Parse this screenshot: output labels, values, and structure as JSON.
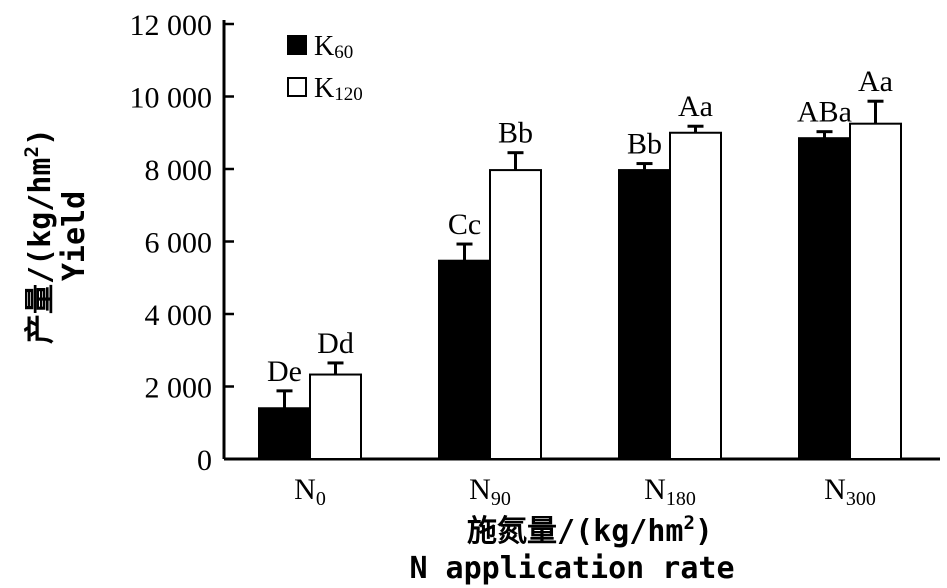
{
  "chart_data": {
    "type": "bar",
    "categories": [
      "N0",
      "N90",
      "N180",
      "N300"
    ],
    "category_labels": [
      {
        "base": "N",
        "sub": "0"
      },
      {
        "base": "N",
        "sub": "90"
      },
      {
        "base": "N",
        "sub": "180"
      },
      {
        "base": "N",
        "sub": "300"
      }
    ],
    "series": [
      {
        "name": "K60",
        "name_base": "K",
        "name_sub": "60",
        "fill": "#000000",
        "values": [
          1400,
          5470,
          7970,
          8850
        ],
        "errors": [
          480,
          460,
          180,
          180
        ],
        "labels": [
          "De",
          "Cc",
          "Bb",
          "ABa"
        ]
      },
      {
        "name": "K120",
        "name_base": "K",
        "name_sub": "120",
        "fill": "#ffffff",
        "values": [
          2330,
          7970,
          9000,
          9250
        ],
        "errors": [
          320,
          480,
          180,
          620
        ],
        "labels": [
          "Dd",
          "Bb",
          "Aa",
          "Aa"
        ]
      }
    ],
    "ylim": [
      0,
      12000
    ],
    "yticks": [
      0,
      2000,
      4000,
      6000,
      8000,
      10000,
      12000
    ],
    "ytick_labels": [
      "0",
      "2 000",
      "4 000",
      "6 000",
      "8 000",
      "10 000",
      "12 000"
    ],
    "ylabel": {
      "main": "产量/(kg/hm",
      "sup": "2",
      "close": ")",
      "secondary": "Yield"
    },
    "xlabel": {
      "main": "施氮量/(kg/hm",
      "sup": "2",
      "close": ")",
      "secondary": "N application rate"
    },
    "legend_position": "top-left",
    "grid": false
  }
}
